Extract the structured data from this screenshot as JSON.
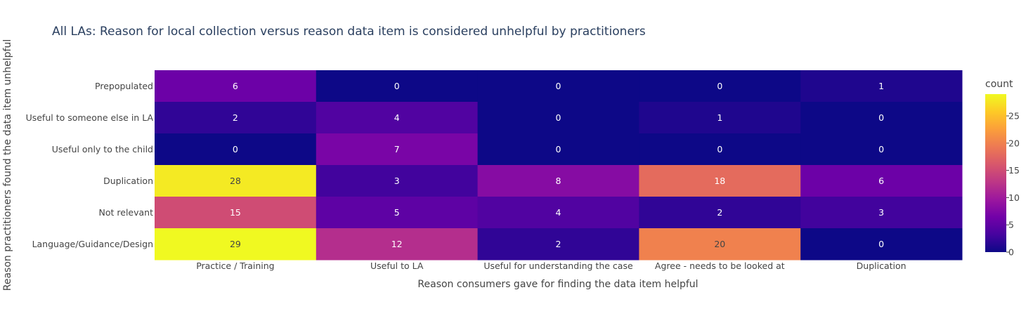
{
  "chart_data": {
    "type": "heatmap",
    "title": "All LAs: Reason for local collection versus reason data item is considered unhelpful by practitioners",
    "xlabel": "Reason consumers gave for finding the data item helpful",
    "ylabel": "Reason practitioners found the data item unhelpful",
    "x_categories": [
      "Practice / Training",
      "Useful to LA",
      "Useful for understanding the case",
      "Agree - needs to be looked at",
      "Duplication"
    ],
    "y_categories": [
      "Prepopulated",
      "Useful to someone else in LA",
      "Useful only to the child",
      "Duplication",
      "Not relevant",
      "Language/Guidance/Design"
    ],
    "z": [
      [
        6,
        0,
        0,
        0,
        1
      ],
      [
        2,
        4,
        0,
        1,
        0
      ],
      [
        0,
        7,
        0,
        0,
        0
      ],
      [
        28,
        3,
        8,
        18,
        6
      ],
      [
        15,
        5,
        4,
        2,
        3
      ],
      [
        29,
        12,
        2,
        20,
        0
      ]
    ],
    "zrange": [
      0,
      29
    ],
    "colorbar": {
      "title": "count",
      "ticks": [
        0,
        5,
        10,
        15,
        20,
        25
      ]
    },
    "colorscale": [
      "#0d0887",
      "#46039f",
      "#7201a8",
      "#9c179e",
      "#bd3786",
      "#d8576b",
      "#ed7953",
      "#fb9f3a",
      "#fdca26",
      "#f0f921"
    ]
  }
}
